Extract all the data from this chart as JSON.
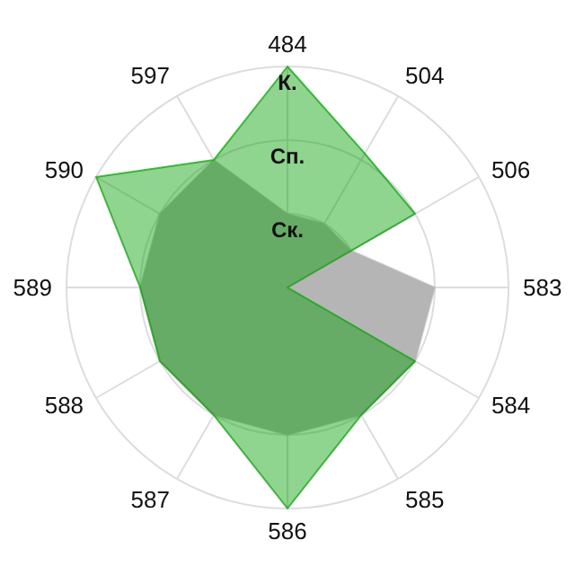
{
  "chart_data": {
    "type": "radar",
    "categories": [
      "484",
      "504",
      "506",
      "583",
      "584",
      "585",
      "586",
      "587",
      "588",
      "589",
      "590",
      "597"
    ],
    "series": [
      {
        "color": "#b5b5b5",
        "values": [
          1,
          1,
          1,
          2,
          2,
          2,
          2,
          2,
          2,
          2,
          2,
          2
        ]
      },
      {
        "color": "#069f06",
        "values": [
          3,
          2.1,
          2,
          0,
          2,
          2,
          3,
          2,
          2,
          2,
          3,
          2
        ]
      }
    ],
    "ylim": [
      0,
      3
    ],
    "yticks": [
      {
        "value": 1,
        "label": "Ск."
      },
      {
        "value": 2,
        "label": "Сп."
      },
      {
        "value": 3,
        "label": "К."
      }
    ],
    "grid": true
  }
}
